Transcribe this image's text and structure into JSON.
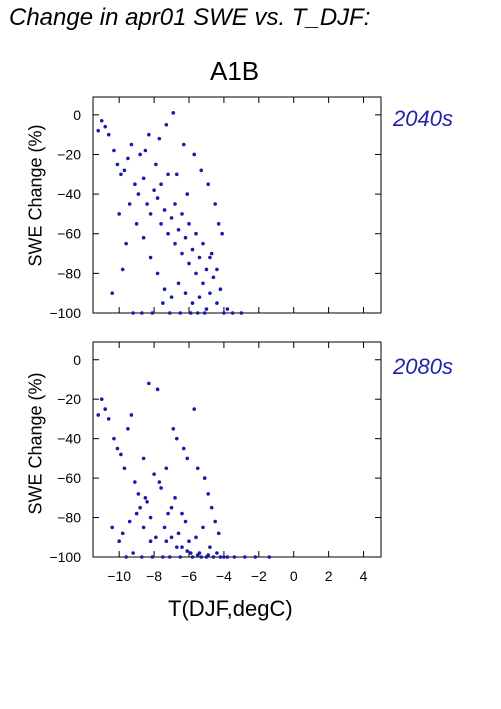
{
  "title": "Change in apr01 SWE vs. T_DJF:",
  "scenario": "A1B",
  "xlabel": "T(DJF,degC)",
  "colors": {
    "points": "#1a1aaa",
    "period_label": "#2222aa",
    "axis": "#000000"
  },
  "chart_data": [
    {
      "type": "scatter",
      "period_label": "2040s",
      "ylabel": "SWE Change (%)",
      "xlabel": "",
      "xlim": [
        -11.5,
        5
      ],
      "ylim": [
        -100,
        9
      ],
      "yticks": [
        0,
        -20,
        -40,
        -60,
        -80,
        -100
      ],
      "xticks": [
        -10,
        -8,
        -6,
        -4,
        -2,
        0,
        2,
        4
      ],
      "grid": false,
      "points": [
        [
          -11.2,
          -8
        ],
        [
          -11,
          -3
        ],
        [
          -10.8,
          -6
        ],
        [
          -10.6,
          -10
        ],
        [
          -10.3,
          -18
        ],
        [
          -10.1,
          -25
        ],
        [
          -9.9,
          -30
        ],
        [
          -9.7,
          -28
        ],
        [
          -9.5,
          -22
        ],
        [
          -9.3,
          -15
        ],
        [
          -9.1,
          -35
        ],
        [
          -8.9,
          -40
        ],
        [
          -8.8,
          -20
        ],
        [
          -8.6,
          -32
        ],
        [
          -8.4,
          -45
        ],
        [
          -8.2,
          -50
        ],
        [
          -8,
          -38
        ],
        [
          -7.8,
          -42
        ],
        [
          -7.6,
          -55
        ],
        [
          -7.4,
          -48
        ],
        [
          -7.2,
          -60
        ],
        [
          -7,
          -52
        ],
        [
          -6.8,
          -65
        ],
        [
          -6.6,
          -58
        ],
        [
          -6.4,
          -70
        ],
        [
          -6.2,
          -62
        ],
        [
          -6,
          -75
        ],
        [
          -5.8,
          -68
        ],
        [
          -5.6,
          -80
        ],
        [
          -5.4,
          -72
        ],
        [
          -5.2,
          -85
        ],
        [
          -5,
          -78
        ],
        [
          -4.8,
          -90
        ],
        [
          -4.6,
          -82
        ],
        [
          -4.4,
          -95
        ],
        [
          -4.2,
          -88
        ],
        [
          -4,
          -100
        ],
        [
          -3.8,
          -98
        ],
        [
          -3.5,
          -100
        ],
        [
          -3,
          -100
        ],
        [
          -10,
          -50
        ],
        [
          -9.6,
          -65
        ],
        [
          -9.8,
          -78
        ],
        [
          -10.4,
          -90
        ],
        [
          -9.2,
          -100
        ],
        [
          -8.7,
          -100
        ],
        [
          -8.1,
          -100
        ],
        [
          -7.5,
          -95
        ],
        [
          -7.1,
          -100
        ],
        [
          -6.5,
          -100
        ],
        [
          -5.9,
          -100
        ],
        [
          -5.5,
          -100
        ],
        [
          -5.1,
          -100
        ],
        [
          -6.9,
          1
        ],
        [
          -7.3,
          -5
        ],
        [
          -8.3,
          -10
        ],
        [
          -7.7,
          -12
        ],
        [
          -6.3,
          -15
        ],
        [
          -5.7,
          -20
        ],
        [
          -5.3,
          -28
        ],
        [
          -4.9,
          -35
        ],
        [
          -4.5,
          -45
        ],
        [
          -4.3,
          -55
        ],
        [
          -4.1,
          -60
        ],
        [
          -4.7,
          -70
        ],
        [
          -6.1,
          -40
        ],
        [
          -6.7,
          -30
        ],
        [
          -7.9,
          -25
        ],
        [
          -8.5,
          -18
        ],
        [
          -9.4,
          -45
        ],
        [
          -9,
          -55
        ],
        [
          -8.6,
          -62
        ],
        [
          -8.2,
          -72
        ],
        [
          -7.8,
          -80
        ],
        [
          -7.4,
          -88
        ],
        [
          -7,
          -92
        ],
        [
          -6.6,
          -85
        ],
        [
          -6.2,
          -90
        ],
        [
          -5.8,
          -95
        ],
        [
          -5.4,
          -92
        ],
        [
          -5,
          -98
        ],
        [
          -7.6,
          -35
        ],
        [
          -7.2,
          -30
        ],
        [
          -6.8,
          -45
        ],
        [
          -6.4,
          -50
        ],
        [
          -6,
          -55
        ],
        [
          -5.6,
          -60
        ],
        [
          -5.2,
          -65
        ],
        [
          -4.8,
          -72
        ],
        [
          -4.4,
          -78
        ]
      ]
    },
    {
      "type": "scatter",
      "period_label": "2080s",
      "ylabel": "SWE Change (%)",
      "xlabel": "T(DJF,degC)",
      "xlim": [
        -11.5,
        5
      ],
      "ylim": [
        -100,
        9
      ],
      "yticks": [
        0,
        -20,
        -40,
        -60,
        -80,
        -100
      ],
      "xticks": [
        -10,
        -8,
        -6,
        -4,
        -2,
        0,
        2,
        4
      ],
      "xticklabels": [
        "−10",
        "−8",
        "−6",
        "−4",
        "−2",
        "0",
        "2",
        "4"
      ],
      "grid": false,
      "points": [
        [
          -11.2,
          -28
        ],
        [
          -11,
          -20
        ],
        [
          -10.8,
          -25
        ],
        [
          -10.6,
          -30
        ],
        [
          -10.3,
          -40
        ],
        [
          -10.1,
          -45
        ],
        [
          -9.9,
          -48
        ],
        [
          -9.7,
          -55
        ],
        [
          -9.5,
          -35
        ],
        [
          -9.3,
          -28
        ],
        [
          -9.1,
          -62
        ],
        [
          -8.9,
          -68
        ],
        [
          -8.8,
          -75
        ],
        [
          -8.6,
          -50
        ],
        [
          -8.4,
          -72
        ],
        [
          -8.2,
          -80
        ],
        [
          -8,
          -58
        ],
        [
          -7.8,
          -15
        ],
        [
          -7.6,
          -65
        ],
        [
          -7.4,
          -85
        ],
        [
          -7.2,
          -78
        ],
        [
          -7,
          -90
        ],
        [
          -6.8,
          -70
        ],
        [
          -6.6,
          -88
        ],
        [
          -6.4,
          -95
        ],
        [
          -6.2,
          -82
        ],
        [
          -6,
          -92
        ],
        [
          -5.8,
          -100
        ],
        [
          -5.6,
          -90
        ],
        [
          -5.4,
          -98
        ],
        [
          -5.2,
          -85
        ],
        [
          -5,
          -100
        ],
        [
          -4.8,
          -95
        ],
        [
          -4.6,
          -100
        ],
        [
          -4.4,
          -98
        ],
        [
          -4.2,
          -100
        ],
        [
          -4,
          -100
        ],
        [
          -3.8,
          -100
        ],
        [
          -3.4,
          -100
        ],
        [
          -2.8,
          -100
        ],
        [
          -2.2,
          -100
        ],
        [
          -1.4,
          -100
        ],
        [
          -10.4,
          -85
        ],
        [
          -10,
          -92
        ],
        [
          -9.6,
          -100
        ],
        [
          -9.2,
          -98
        ],
        [
          -8.7,
          -100
        ],
        [
          -8.1,
          -100
        ],
        [
          -7.5,
          -100
        ],
        [
          -7.1,
          -100
        ],
        [
          -6.5,
          -100
        ],
        [
          -5.9,
          -98
        ],
        [
          -5.3,
          -100
        ],
        [
          -8.3,
          -12
        ],
        [
          -6.9,
          -35
        ],
        [
          -6.3,
          -45
        ],
        [
          -5.7,
          -25
        ],
        [
          -5.5,
          -55
        ],
        [
          -5.1,
          -60
        ],
        [
          -4.9,
          -68
        ],
        [
          -4.7,
          -75
        ],
        [
          -4.5,
          -82
        ],
        [
          -4.3,
          -88
        ],
        [
          -6.1,
          -50
        ],
        [
          -6.7,
          -40
        ],
        [
          -7.3,
          -55
        ],
        [
          -7.7,
          -62
        ],
        [
          -8.5,
          -70
        ],
        [
          -9,
          -78
        ],
        [
          -9.4,
          -82
        ],
        [
          -9.8,
          -88
        ],
        [
          -7.9,
          -90
        ],
        [
          -7.3,
          -92
        ],
        [
          -6.7,
          -95
        ],
        [
          -6.1,
          -97
        ],
        [
          -5.5,
          -99
        ],
        [
          -4.9,
          -99
        ],
        [
          -8.6,
          -85
        ],
        [
          -8.2,
          -92
        ],
        [
          -7,
          -75
        ],
        [
          -6.4,
          -78
        ]
      ]
    }
  ]
}
